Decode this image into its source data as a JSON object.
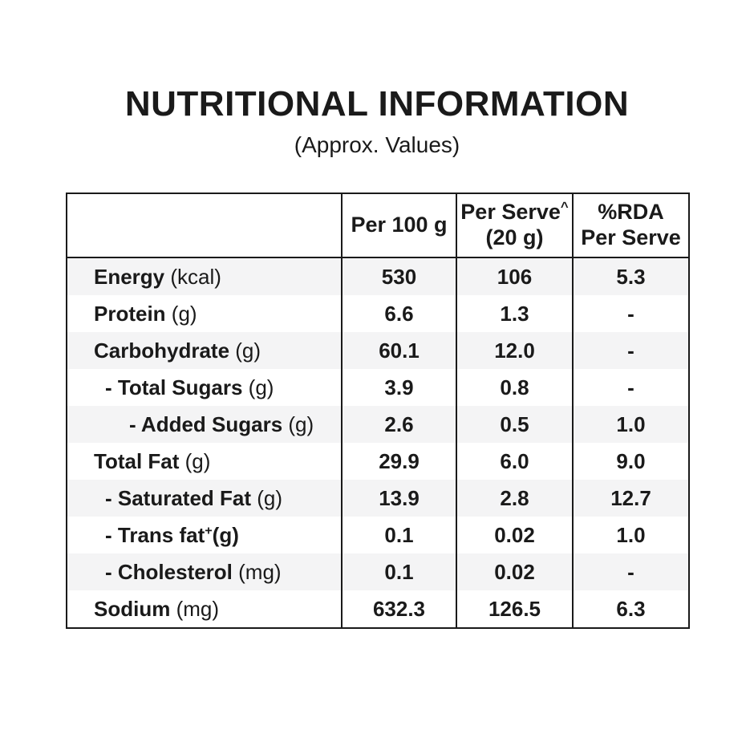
{
  "header": {
    "title": "NUTRITIONAL INFORMATION",
    "subtitle": "(Approx. Values)"
  },
  "table": {
    "column_headers": {
      "nutrient": "",
      "per_100g": "Per 100 g",
      "per_serve_line1": "Per Serve",
      "per_serve_sup": "^",
      "per_serve_line2": "(20 g)",
      "rda_line1": "%RDA",
      "rda_line2": "Per Serve"
    },
    "rows": [
      {
        "label": "Energy",
        "sup": "",
        "unit": " (kcal)",
        "unit_bold": false,
        "indent": 0,
        "per_100g": "530",
        "per_serve": "106",
        "rda_per_serve": "5.3",
        "shaded": true
      },
      {
        "label": "Protein",
        "sup": "",
        "unit": " (g)",
        "unit_bold": false,
        "indent": 0,
        "per_100g": "6.6",
        "per_serve": "1.3",
        "rda_per_serve": "-",
        "shaded": false
      },
      {
        "label": "Carbohydrate",
        "sup": "",
        "unit": " (g)",
        "unit_bold": false,
        "indent": 0,
        "per_100g": "60.1",
        "per_serve": "12.0",
        "rda_per_serve": "-",
        "shaded": true
      },
      {
        "label": "- Total Sugars",
        "sup": "",
        "unit": " (g)",
        "unit_bold": false,
        "indent": 1,
        "per_100g": "3.9",
        "per_serve": "0.8",
        "rda_per_serve": "-",
        "shaded": false
      },
      {
        "label": "- Added Sugars",
        "sup": "",
        "unit": " (g)",
        "unit_bold": false,
        "indent": 2,
        "per_100g": "2.6",
        "per_serve": "0.5",
        "rda_per_serve": "1.0",
        "shaded": true
      },
      {
        "label": "Total Fat",
        "sup": "",
        "unit": " (g)",
        "unit_bold": false,
        "indent": 0,
        "per_100g": "29.9",
        "per_serve": "6.0",
        "rda_per_serve": "9.0",
        "shaded": false
      },
      {
        "label": "- Saturated Fat",
        "sup": "",
        "unit": " (g)",
        "unit_bold": false,
        "indent": 1,
        "per_100g": "13.9",
        "per_serve": "2.8",
        "rda_per_serve": "12.7",
        "shaded": true
      },
      {
        "label": "- Trans fat",
        "sup": "+",
        "unit": "(g)",
        "unit_bold": true,
        "indent": 1,
        "per_100g": "0.1",
        "per_serve": "0.02",
        "rda_per_serve": "1.0",
        "shaded": false
      },
      {
        "label": "- Cholesterol",
        "sup": "",
        "unit": " (mg)",
        "unit_bold": false,
        "indent": 1,
        "per_100g": "0.1",
        "per_serve": "0.02",
        "rda_per_serve": "-",
        "shaded": true
      },
      {
        "label": "Sodium",
        "sup": "",
        "unit": " (mg)",
        "unit_bold": false,
        "indent": 0,
        "per_100g": "632.3",
        "per_serve": "126.5",
        "rda_per_serve": "6.3",
        "shaded": false
      }
    ]
  },
  "colors": {
    "text": "#1a1a1a",
    "border": "#1a1a1a",
    "row_stripe": "#f4f4f5",
    "background": "#ffffff"
  }
}
